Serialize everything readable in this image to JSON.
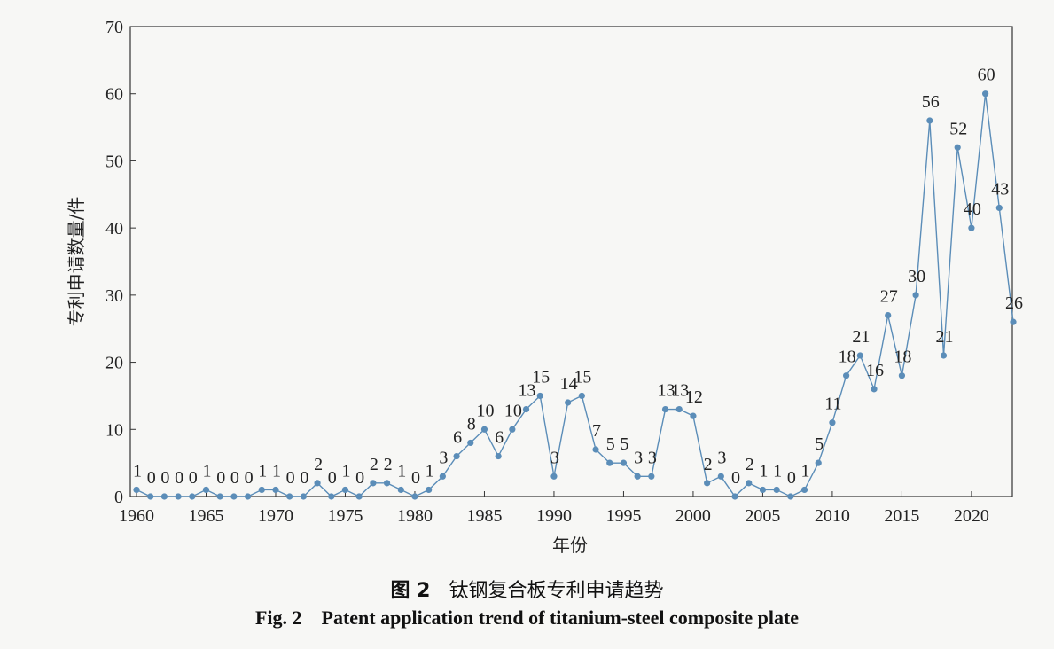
{
  "chart_data": {
    "type": "line",
    "xlabel": "年份",
    "ylabel": "专利申请数量/件",
    "x": [
      1960,
      1961,
      1962,
      1963,
      1964,
      1965,
      1966,
      1967,
      1968,
      1969,
      1970,
      1971,
      1972,
      1973,
      1974,
      1975,
      1976,
      1977,
      1978,
      1979,
      1980,
      1981,
      1982,
      1983,
      1984,
      1985,
      1986,
      1987,
      1988,
      1989,
      1990,
      1991,
      1992,
      1993,
      1994,
      1995,
      1996,
      1997,
      1998,
      1999,
      2000,
      2001,
      2002,
      2003,
      2004,
      2005,
      2006,
      2007,
      2008,
      2009,
      2010,
      2011,
      2012,
      2013,
      2014,
      2015,
      2016,
      2017,
      2018,
      2019,
      2020,
      2021,
      2022,
      2023
    ],
    "y": [
      1,
      0,
      0,
      0,
      0,
      1,
      0,
      0,
      0,
      1,
      1,
      0,
      0,
      2,
      0,
      1,
      0,
      2,
      2,
      1,
      0,
      1,
      3,
      6,
      8,
      10,
      6,
      10,
      13,
      15,
      3,
      14,
      15,
      7,
      5,
      5,
      3,
      3,
      13,
      13,
      12,
      2,
      3,
      0,
      2,
      1,
      1,
      0,
      1,
      5,
      11,
      18,
      21,
      16,
      27,
      18,
      30,
      56,
      21,
      52,
      40,
      60,
      43,
      26
    ],
    "xlim": [
      1960,
      2023
    ],
    "ylim": [
      0,
      70
    ],
    "xticks": [
      1960,
      1965,
      1970,
      1975,
      1980,
      1985,
      1990,
      1995,
      2000,
      2005,
      2010,
      2015,
      2020
    ],
    "yticks": [
      0,
      10,
      20,
      30,
      40,
      50,
      60,
      70
    ],
    "data_labels": true,
    "color": "#5b8db8"
  },
  "caption": {
    "cn_label": "图 2",
    "cn_title": "钛钢复合板专利申请趋势",
    "en_label": "Fig. 2",
    "en_title": "Patent application trend of titanium-steel composite plate"
  }
}
